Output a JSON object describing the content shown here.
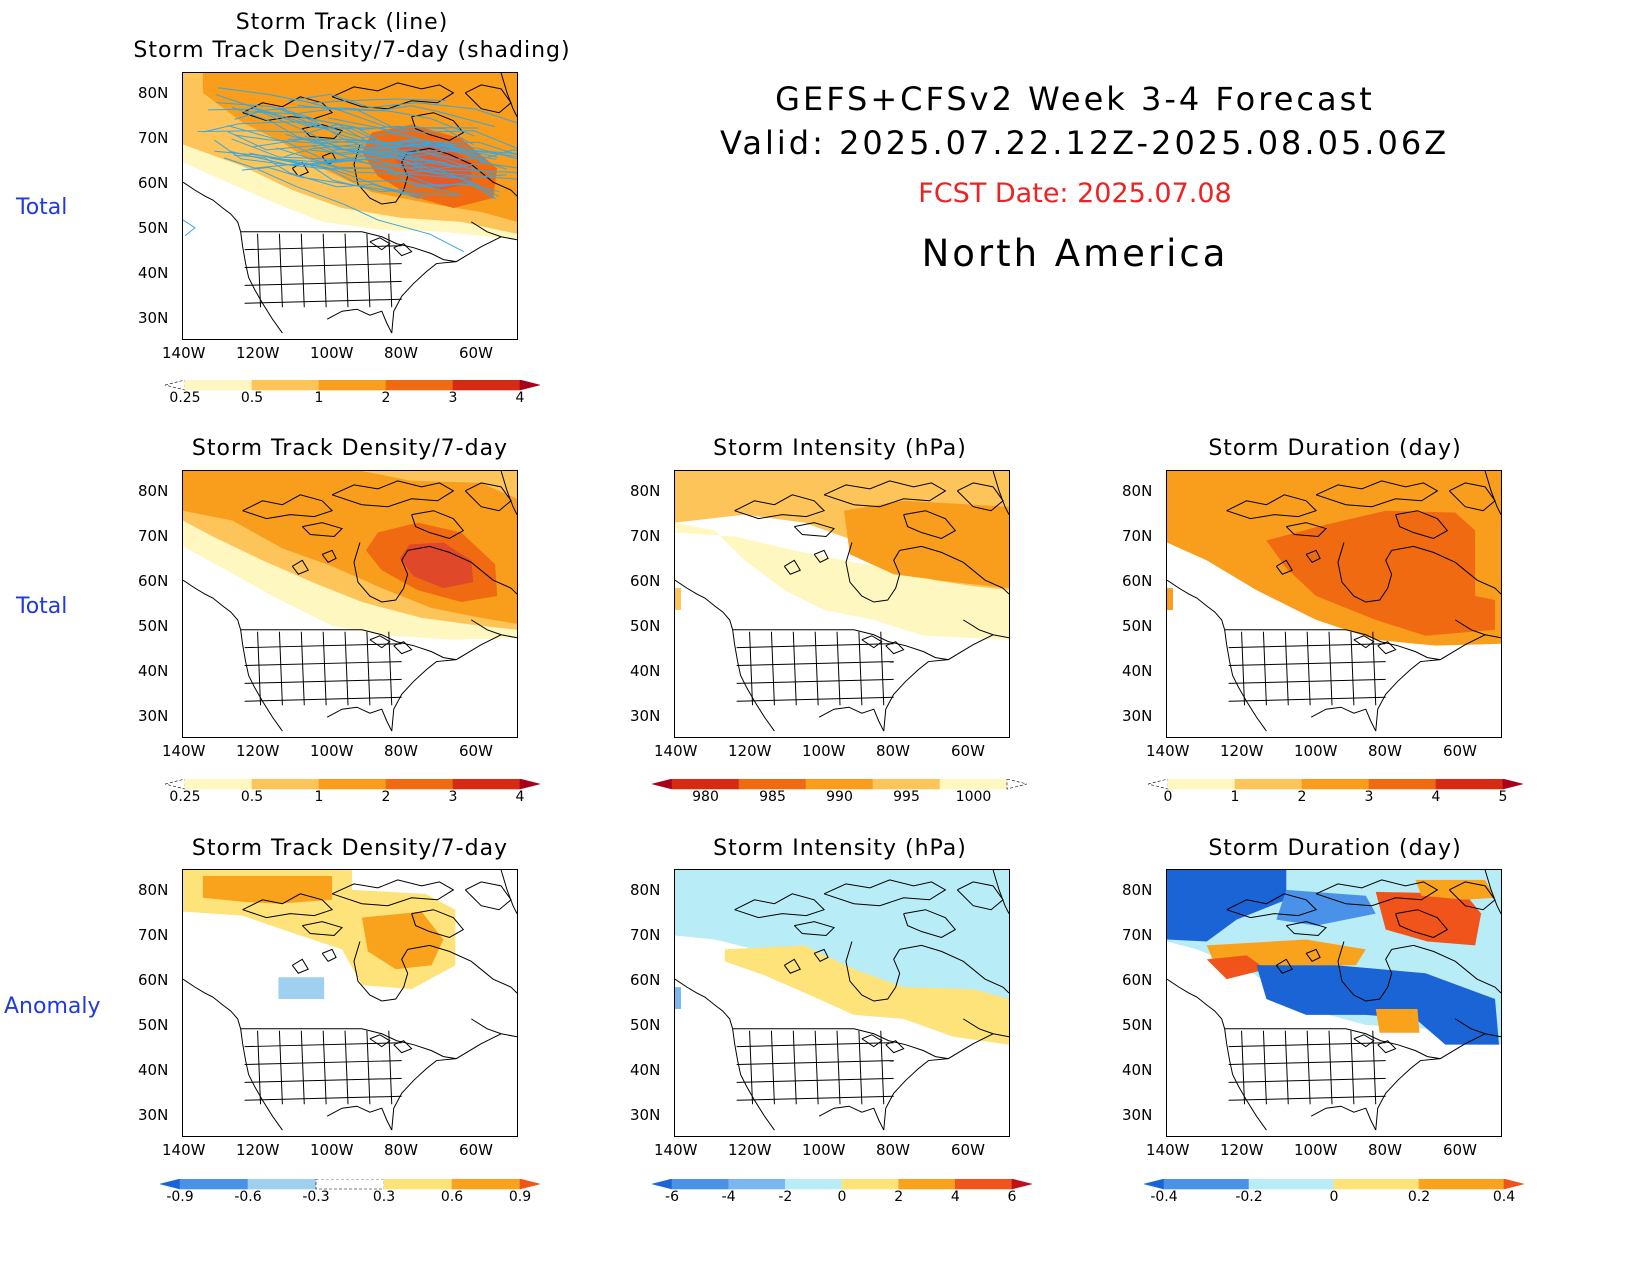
{
  "header": {
    "line1": "GEFS+CFSv2  Week  3-4  Forecast",
    "line2": "Valid:  2025.07.22.12Z-2025.08.05.06Z",
    "fcst": "FCST Date: 2025.07.08",
    "region": "North  America"
  },
  "row_labels": {
    "total1": "Total",
    "total2": "Total",
    "anomaly": "Anomaly"
  },
  "axis": {
    "lat": [
      "80N",
      "70N",
      "60N",
      "50N",
      "40N",
      "30N"
    ],
    "lon": [
      "140W",
      "120W",
      "100W",
      "80W",
      "60W"
    ]
  },
  "panels": {
    "p0": {
      "title1": "Storm Track (line)",
      "title2": "Storm Track Density/7-day (shading)"
    },
    "p1": {
      "title": "Storm Track Density/7-day"
    },
    "p2": {
      "title": "Storm Intensity (hPa)"
    },
    "p3": {
      "title": "Storm Duration (day)"
    },
    "p4": {
      "title": "Storm Track Density/7-day"
    },
    "p5": {
      "title": "Storm Intensity (hPa)"
    },
    "p6": {
      "title": "Storm Duration (day)"
    }
  },
  "colorbars": {
    "density_total": {
      "labels": [
        "0.25",
        "0.5",
        "1",
        "2",
        "3",
        "4"
      ],
      "colors": [
        "#ffffff",
        "#fff7c0",
        "#fdc45a",
        "#f99d1c",
        "#f06a12",
        "#d62a12",
        "#a8001a"
      ]
    },
    "intensity_total": {
      "labels": [
        "980",
        "985",
        "990",
        "995",
        "1000"
      ],
      "colors": [
        "#a8001a",
        "#d62a12",
        "#f06a12",
        "#f99d1c",
        "#fdc45a",
        "#fff7c0",
        "#ffffff"
      ]
    },
    "duration_total": {
      "labels": [
        "0",
        "1",
        "2",
        "3",
        "4",
        "5"
      ],
      "colors": [
        "#ffffff",
        "#fff7c0",
        "#fdc45a",
        "#f99d1c",
        "#f06a12",
        "#d62a12",
        "#a8001a"
      ]
    },
    "density_anom": {
      "labels": [
        "-0.9",
        "-0.6",
        "-0.3",
        "0.3",
        "0.6",
        "0.9"
      ],
      "colors": [
        "#1a64d6",
        "#4a92e8",
        "#9fd0f0",
        "#ffffff",
        "#fde37a",
        "#f9a21c",
        "#f0541a"
      ]
    },
    "intensity_anom": {
      "labels": [
        "-6",
        "-4",
        "-2",
        "0",
        "2",
        "4",
        "6"
      ],
      "colors": [
        "#1a64d6",
        "#4a92e8",
        "#7ab6f0",
        "#b8ecf6",
        "#fde37a",
        "#f9a21c",
        "#f0541a",
        "#c0101a"
      ]
    },
    "duration_anom": {
      "labels": [
        "-0.4",
        "-0.2",
        "0",
        "0.2",
        "0.4"
      ],
      "colors": [
        "#1a64d6",
        "#4a92e8",
        "#b8ecf6",
        "#fde37a",
        "#f9a21c",
        "#f0541a"
      ]
    }
  },
  "colors": {
    "track_line": "#3aa6dd",
    "label_blue": "#1f3ae0",
    "fcst_red": "#ee2222"
  }
}
